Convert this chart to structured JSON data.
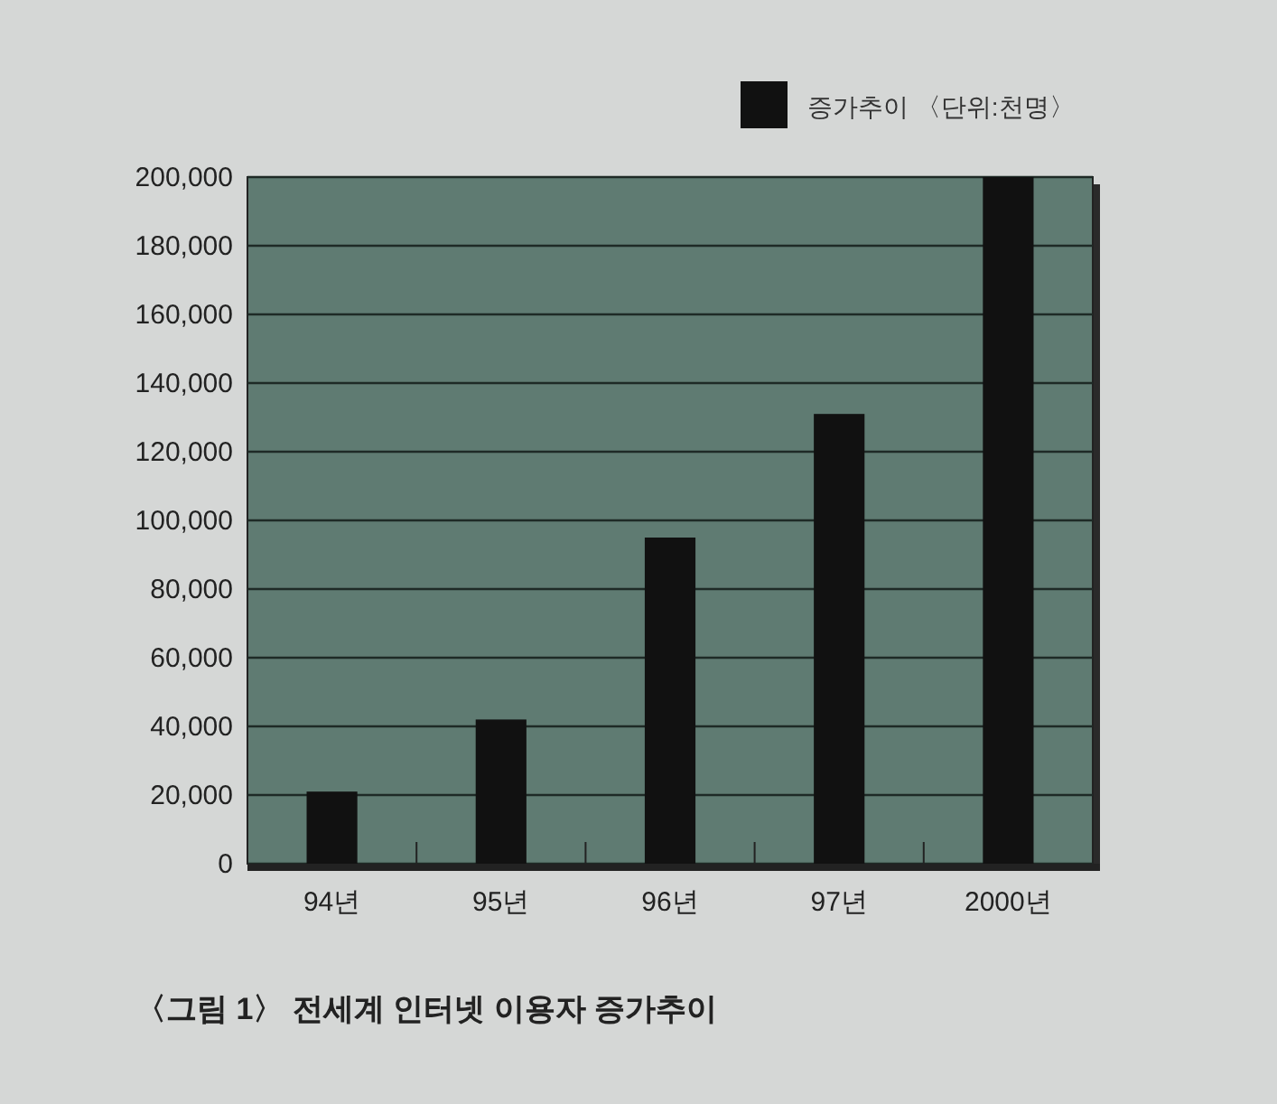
{
  "chart_data": {
    "type": "bar",
    "title": "〈그림 1〉 전세계 인터넷 이용자 증가추이",
    "categories": [
      "94년",
      "95년",
      "96년",
      "97년",
      "2000년"
    ],
    "series": [
      {
        "name": "증가추이 〈단위:천명〉",
        "color": "#111111",
        "values": [
          21000,
          42000,
          95000,
          131000,
          200000
        ]
      }
    ],
    "ylim": [
      0,
      200000
    ],
    "yticks": [
      0,
      {
        "value": 20000,
        "label": "20,000"
      },
      {
        "value": 40000,
        "label": "40,000"
      },
      {
        "value": 60000,
        "label": "60,000"
      },
      {
        "value": 80000,
        "label": "80,000"
      },
      {
        "value": 100000,
        "label": "100,000"
      },
      {
        "value": 120000,
        "label": "120,000"
      },
      {
        "value": 140000,
        "label": "140,000"
      },
      {
        "value": 160000,
        "label": "160,000"
      },
      {
        "value": 180000,
        "label": "180,000"
      },
      {
        "value": 200000,
        "label": "200,000"
      }
    ],
    "grid": "y",
    "legend": "top right"
  }
}
